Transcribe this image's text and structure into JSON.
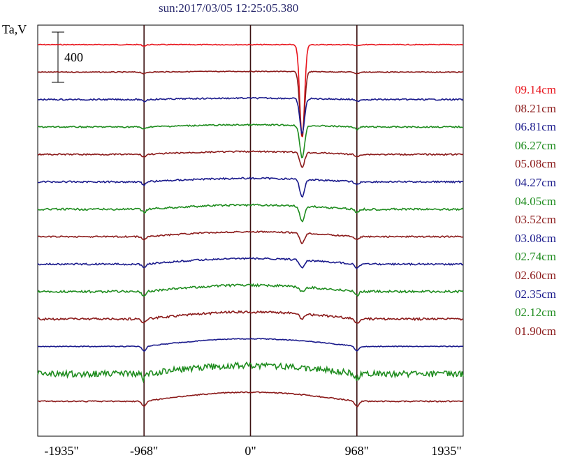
{
  "chart_data": {
    "type": "line",
    "title": "sun:2017/03/05 12:25:05.380",
    "ylabel": "Ta,V",
    "xlabel": "",
    "x_ticks": [
      "-1935\"",
      "-968\"",
      "0\"",
      "968\"",
      "1935\""
    ],
    "x_tick_values": [
      -1935,
      -968,
      0,
      968,
      1935
    ],
    "xlim": [
      -1935,
      1935
    ],
    "vertical_lines": [
      -968,
      0,
      968
    ],
    "scale_bar": {
      "label": "400",
      "value": 400
    },
    "grid": false,
    "legend_placement": "right",
    "series": [
      {
        "name": "09.14cm",
        "color": "#e8141c",
        "dip": 750,
        "noise": 0.3
      },
      {
        "name": "08.21cm",
        "color": "#8b1a1a",
        "dip": 520,
        "noise": 0.3
      },
      {
        "name": "06.81cm",
        "color": "#1a1a8c",
        "dip": 280,
        "noise": 0.5
      },
      {
        "name": "06.27cm",
        "color": "#1e8c1e",
        "dip": 260,
        "noise": 0.5
      },
      {
        "name": "05.08cm",
        "color": "#8b1a1a",
        "dip": 120,
        "noise": 0.5
      },
      {
        "name": "04.27cm",
        "color": "#1a1a8c",
        "dip": 140,
        "noise": 0.6
      },
      {
        "name": "04.05cm",
        "color": "#1e8c1e",
        "dip": 120,
        "noise": 0.7
      },
      {
        "name": "03.52cm",
        "color": "#8b1a1a",
        "dip": 80,
        "noise": 0.5
      },
      {
        "name": "03.08cm",
        "color": "#1a1a8c",
        "dip": 60,
        "noise": 0.6
      },
      {
        "name": "02.74cm",
        "color": "#1e8c1e",
        "dip": 40,
        "noise": 0.8
      },
      {
        "name": "02.60cm",
        "color": "#8b1a1a",
        "dip": 40,
        "noise": 0.8
      },
      {
        "name": "02.35cm",
        "color": "#1a1a8c",
        "dip": 0,
        "noise": 0.3
      },
      {
        "name": "02.12cm",
        "color": "#1e8c1e",
        "dip": 0,
        "noise": 2.2
      },
      {
        "name": "01.90cm",
        "color": "#8b1a1a",
        "dip": 0,
        "noise": 0.4
      }
    ]
  }
}
